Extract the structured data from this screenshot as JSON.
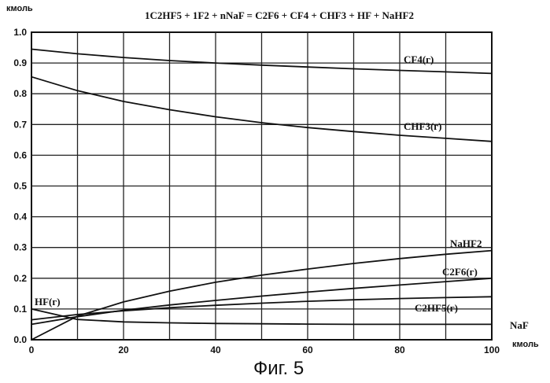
{
  "chart_data": {
    "type": "line",
    "title": "1C2HF5 + 1F2 + nNaF = C2F6 + CF4 + CHF3 + HF + NaHF2",
    "ylabel": "кмоль",
    "xlabel": "NaF",
    "xunit": "кмоль",
    "caption": "Фиг. 5",
    "xlim": [
      0,
      100
    ],
    "ylim": [
      0,
      1.0
    ],
    "xticks": [
      "0",
      "20",
      "40",
      "60",
      "80",
      "100"
    ],
    "yticks": [
      "0.0",
      "0.1",
      "0.2",
      "0.3",
      "0.4",
      "0.5",
      "0.6",
      "0.7",
      "0.8",
      "0.9",
      "1.0"
    ],
    "grid": true,
    "series": [
      {
        "name": "CF4(г)",
        "x": [
          0,
          10,
          20,
          30,
          40,
          50,
          60,
          70,
          80,
          90,
          100
        ],
        "values": [
          0.945,
          0.93,
          0.918,
          0.908,
          0.9,
          0.893,
          0.887,
          0.881,
          0.876,
          0.871,
          0.866
        ]
      },
      {
        "name": "CHF3(г)",
        "x": [
          0,
          10,
          20,
          30,
          40,
          50,
          60,
          70,
          80,
          90,
          100
        ],
        "values": [
          0.855,
          0.81,
          0.775,
          0.748,
          0.725,
          0.706,
          0.69,
          0.677,
          0.665,
          0.655,
          0.645
        ]
      },
      {
        "name": "NaHF2",
        "x": [
          0,
          10,
          20,
          30,
          40,
          50,
          60,
          70,
          80,
          90,
          100
        ],
        "values": [
          0.0,
          0.077,
          0.123,
          0.158,
          0.187,
          0.21,
          0.23,
          0.248,
          0.264,
          0.278,
          0.29
        ]
      },
      {
        "name": "C2F6(г)",
        "x": [
          0,
          10,
          20,
          30,
          40,
          50,
          60,
          70,
          80,
          90,
          100
        ],
        "values": [
          0.05,
          0.075,
          0.096,
          0.113,
          0.128,
          0.142,
          0.155,
          0.167,
          0.178,
          0.189,
          0.2
        ]
      },
      {
        "name": "C2HF5(г)",
        "x": [
          0,
          10,
          20,
          30,
          40,
          50,
          60,
          70,
          80,
          90,
          100
        ],
        "values": [
          0.065,
          0.082,
          0.094,
          0.104,
          0.112,
          0.119,
          0.125,
          0.13,
          0.134,
          0.137,
          0.14
        ]
      },
      {
        "name": "HF(г)",
        "x": [
          0,
          10,
          20,
          30,
          40,
          50,
          60,
          70,
          80,
          90,
          100
        ],
        "values": [
          0.1,
          0.066,
          0.058,
          0.055,
          0.053,
          0.052,
          0.051,
          0.05,
          0.05,
          0.05,
          0.05
        ]
      }
    ]
  }
}
